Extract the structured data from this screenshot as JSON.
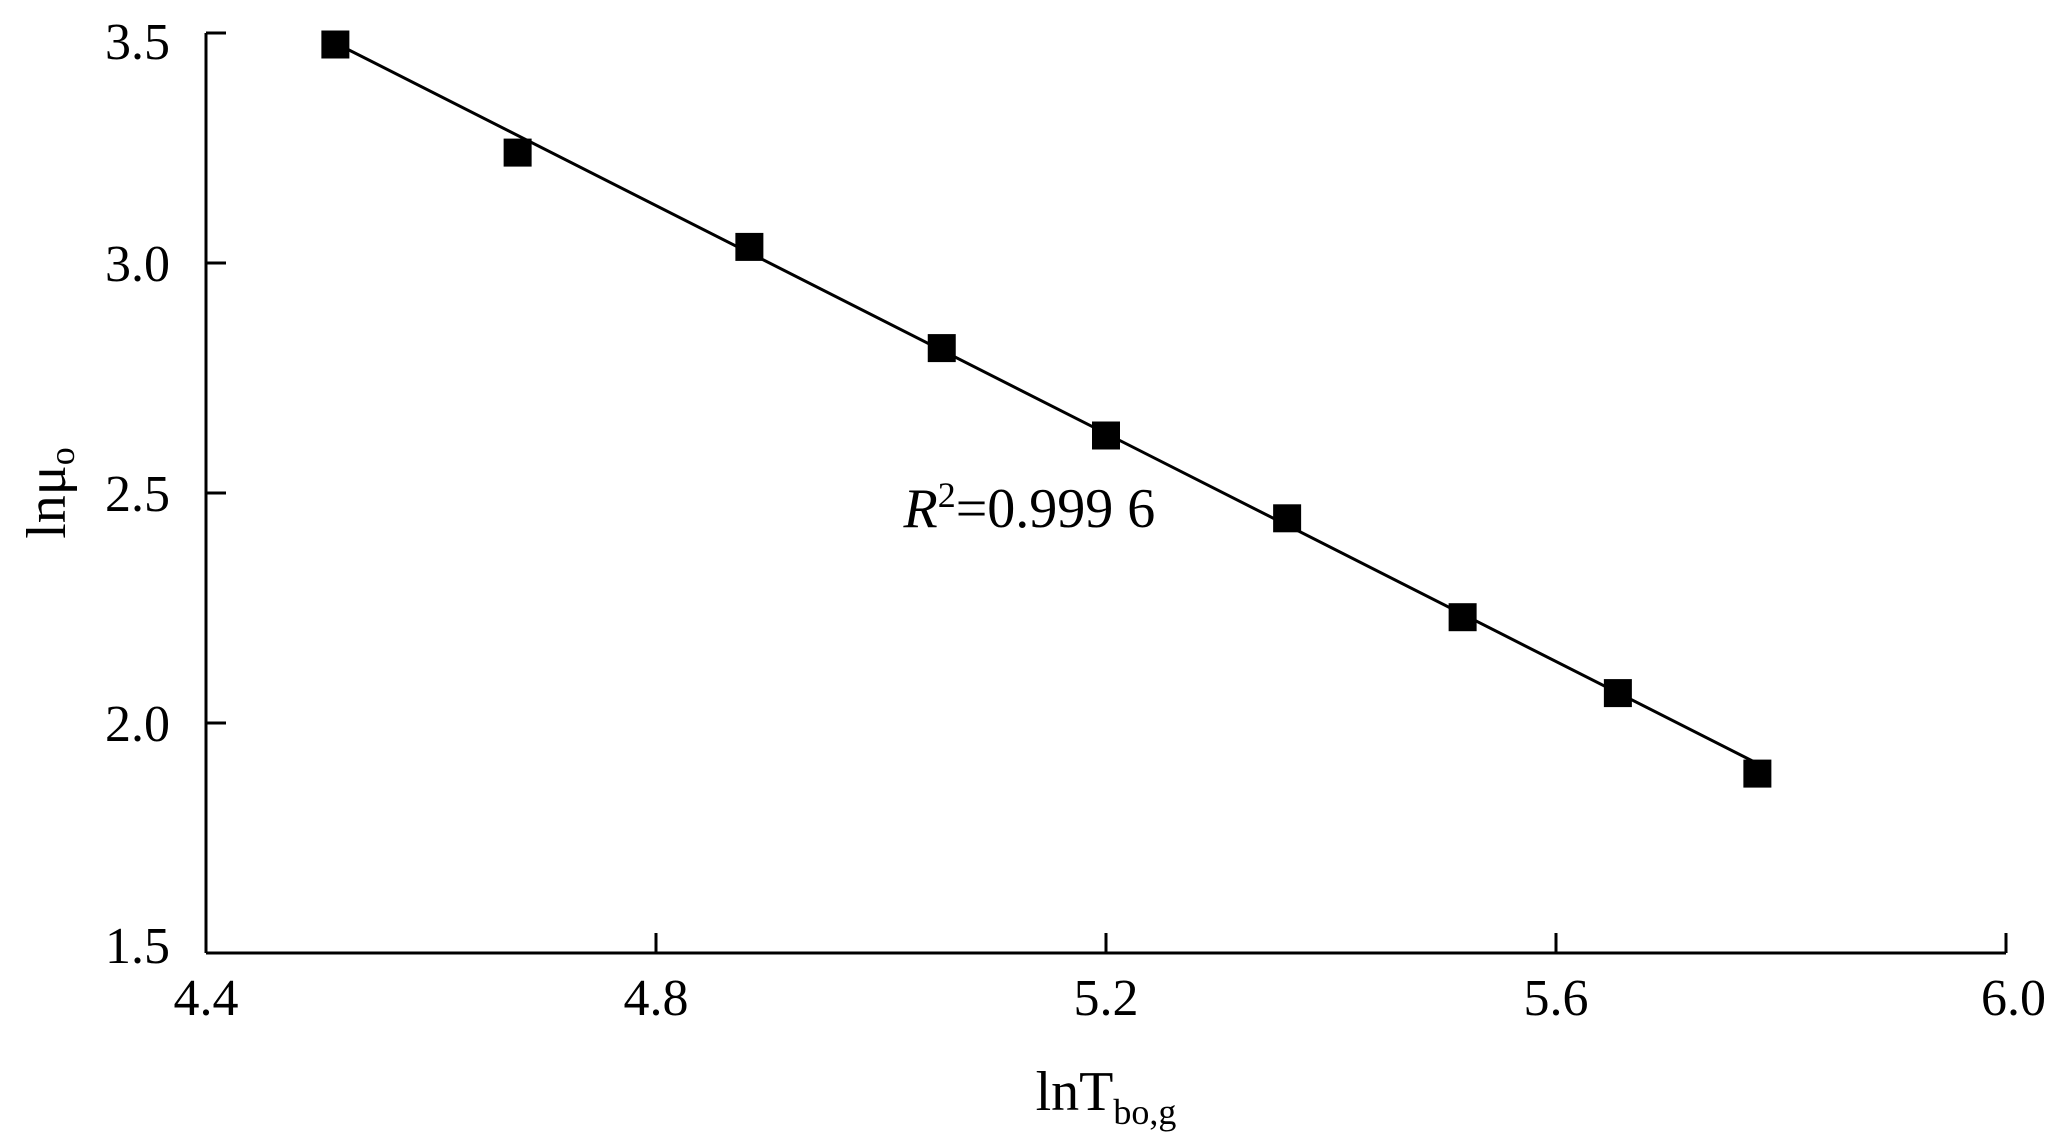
{
  "chart_data": {
    "type": "scatter",
    "xlim": [
      4.4,
      6.0
    ],
    "ylim": [
      1.5,
      3.5
    ],
    "x_ticks": [
      "4.4",
      "4.8",
      "5.2",
      "5.6",
      "6.0"
    ],
    "y_ticks": [
      "1.5",
      "2.0",
      "2.5",
      "3.0",
      "3.5"
    ],
    "xlabel": {
      "main": "lnT",
      "sub": "bo,g"
    },
    "ylabel": {
      "main": "lnμ",
      "sub": "o"
    },
    "grid": false,
    "legend": "none",
    "series": [
      {
        "points": [
          {
            "x": 4.515,
            "y": 3.475
          },
          {
            "x": 4.677,
            "y": 3.24
          },
          {
            "x": 4.883,
            "y": 3.035
          },
          {
            "x": 5.054,
            "y": 2.815
          },
          {
            "x": 5.2,
            "y": 2.625
          },
          {
            "x": 5.361,
            "y": 2.445
          },
          {
            "x": 5.517,
            "y": 2.23
          },
          {
            "x": 5.655,
            "y": 2.065
          },
          {
            "x": 5.779,
            "y": 1.89
          }
        ],
        "marker": "square",
        "color": "#000000"
      }
    ],
    "fit_line": {
      "x": [
        4.515,
        5.779
      ],
      "y": [
        3.478,
        1.912
      ],
      "color": "#000000"
    },
    "annotations": [
      {
        "text_base": "R",
        "text_sup": "2",
        "text_rest": "=0.999 6",
        "x": 5.02,
        "y": 2.47
      }
    ]
  }
}
